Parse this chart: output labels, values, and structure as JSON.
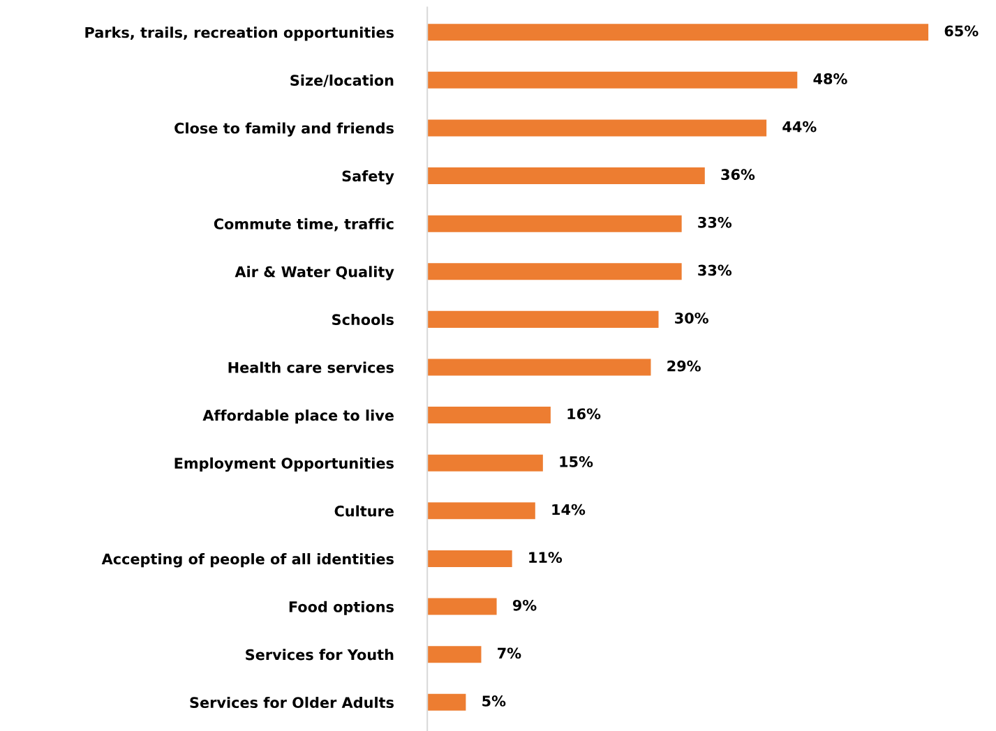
{
  "chart_data": {
    "type": "bar",
    "orientation": "horizontal",
    "categories": [
      "Parks, trails, recreation opportunities",
      "Size/location",
      "Close to family and friends",
      "Safety",
      "Commute time, traffic",
      "Air & Water Quality",
      "Schools",
      "Health care services",
      "Affordable place to live",
      "Employment Opportunities",
      "Culture",
      "Accepting of people of all identities",
      "Food options",
      "Services for Youth",
      "Services for Older Adults"
    ],
    "values": [
      65,
      48,
      44,
      36,
      33,
      33,
      30,
      29,
      16,
      15,
      14,
      11,
      9,
      7,
      5
    ],
    "value_labels": [
      "65%",
      "48%",
      "44%",
      "36%",
      "33%",
      "33%",
      "30%",
      "29%",
      "16%",
      "15%",
      "14%",
      "11%",
      "9%",
      "7%",
      "5%"
    ],
    "color": "#ed7d31",
    "grid": false,
    "legend": false
  }
}
